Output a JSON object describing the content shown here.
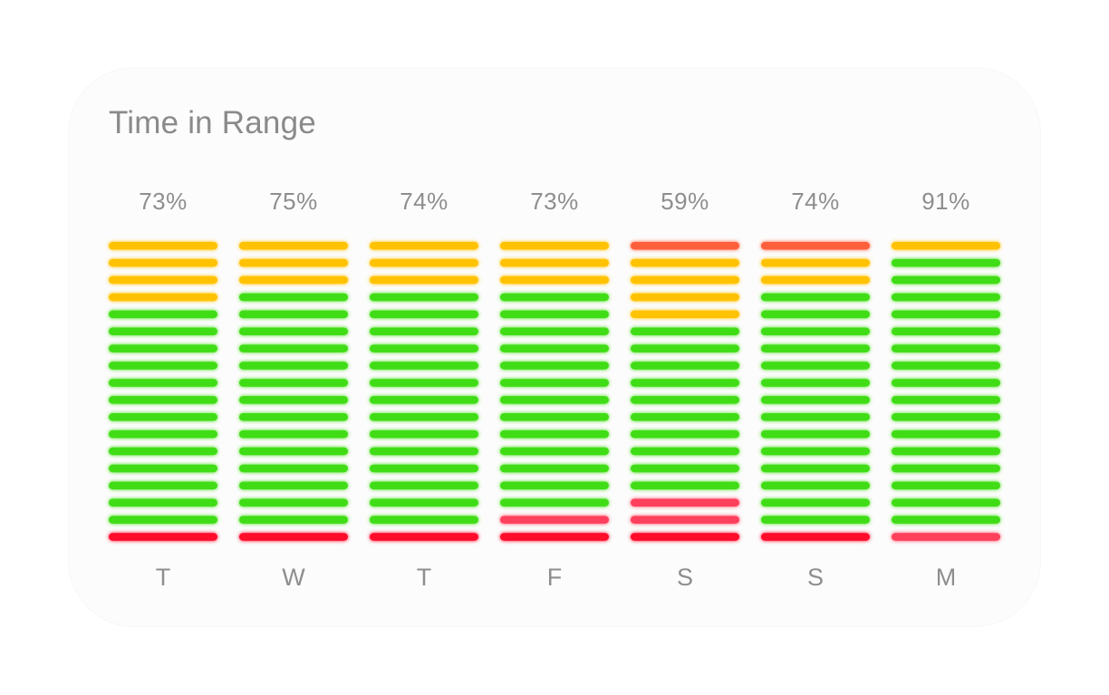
{
  "widget": {
    "title": "Time in Range"
  },
  "colors": {
    "in_range": "#41dd13",
    "high": "#ffc203",
    "very_high": "#ff5e3a",
    "low": "#ff3f5b",
    "very_low": "#ff0a2a",
    "label": "#8e8e8e",
    "card_background": "#fcfcfc"
  },
  "chart_data": {
    "type": "bar",
    "title": "Time in Range",
    "categories": [
      "T",
      "W",
      "T",
      "F",
      "S",
      "S",
      "M"
    ],
    "values": [
      73,
      75,
      74,
      73,
      59,
      74,
      91
    ],
    "value_labels": [
      "73%",
      "75%",
      "74%",
      "73%",
      "59%",
      "74%",
      "91%"
    ],
    "unit": "%",
    "segments_per_column": 18,
    "segment_order": "top-to-bottom",
    "columns": [
      [
        "high",
        "high",
        "high",
        "high",
        "in_range",
        "in_range",
        "in_range",
        "in_range",
        "in_range",
        "in_range",
        "in_range",
        "in_range",
        "in_range",
        "in_range",
        "in_range",
        "in_range",
        "in_range",
        "very_low"
      ],
      [
        "high",
        "high",
        "high",
        "in_range",
        "in_range",
        "in_range",
        "in_range",
        "in_range",
        "in_range",
        "in_range",
        "in_range",
        "in_range",
        "in_range",
        "in_range",
        "in_range",
        "in_range",
        "in_range",
        "very_low"
      ],
      [
        "high",
        "high",
        "high",
        "in_range",
        "in_range",
        "in_range",
        "in_range",
        "in_range",
        "in_range",
        "in_range",
        "in_range",
        "in_range",
        "in_range",
        "in_range",
        "in_range",
        "in_range",
        "in_range",
        "very_low"
      ],
      [
        "high",
        "high",
        "high",
        "in_range",
        "in_range",
        "in_range",
        "in_range",
        "in_range",
        "in_range",
        "in_range",
        "in_range",
        "in_range",
        "in_range",
        "in_range",
        "in_range",
        "in_range",
        "low",
        "very_low"
      ],
      [
        "very_high",
        "high",
        "high",
        "high",
        "high",
        "in_range",
        "in_range",
        "in_range",
        "in_range",
        "in_range",
        "in_range",
        "in_range",
        "in_range",
        "in_range",
        "in_range",
        "low",
        "low",
        "very_low"
      ],
      [
        "very_high",
        "high",
        "high",
        "in_range",
        "in_range",
        "in_range",
        "in_range",
        "in_range",
        "in_range",
        "in_range",
        "in_range",
        "in_range",
        "in_range",
        "in_range",
        "in_range",
        "in_range",
        "in_range",
        "very_low"
      ],
      [
        "high",
        "in_range",
        "in_range",
        "in_range",
        "in_range",
        "in_range",
        "in_range",
        "in_range",
        "in_range",
        "in_range",
        "in_range",
        "in_range",
        "in_range",
        "in_range",
        "in_range",
        "in_range",
        "in_range",
        "low"
      ]
    ],
    "grid": false,
    "legend": "none"
  }
}
